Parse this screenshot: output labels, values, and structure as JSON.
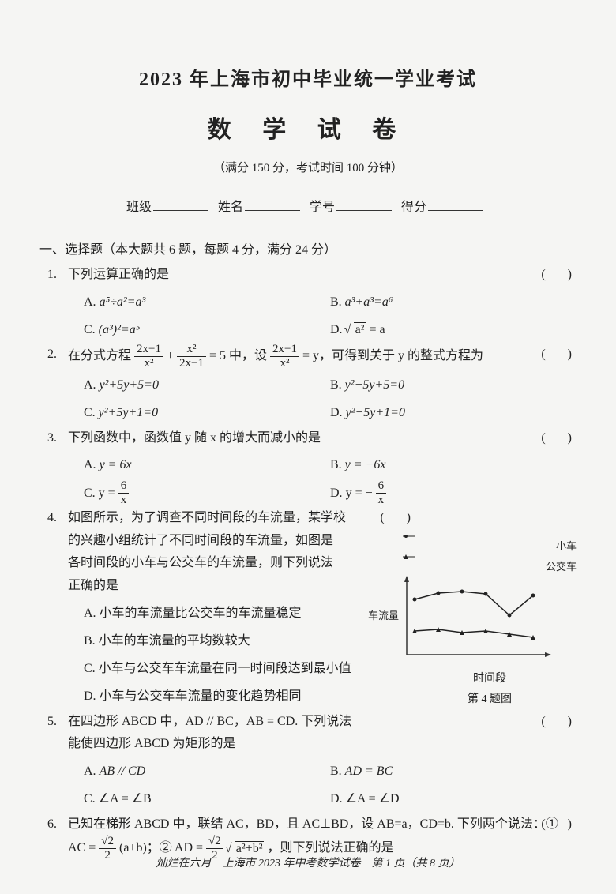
{
  "header": {
    "title1": "2023 年上海市初中毕业统一学业考试",
    "title2": "数 学 试 卷",
    "subtitle": "（满分 150 分，考试时间 100 分钟）",
    "info_labels": {
      "class": "班级",
      "name": "姓名",
      "id": "学号",
      "score": "得分"
    }
  },
  "section1": {
    "heading": "一、选择题（本大题共 6 题，每题 4 分，满分 24 分）",
    "q1": {
      "num": "1.",
      "text": "下列运算正确的是",
      "A": "a⁵÷a²=a³",
      "B": "a³+a³=a⁶",
      "C": "(a³)²=a⁵",
      "D_prefix": "",
      "D_rad": "a²",
      "D_suffix": " = a"
    },
    "q2": {
      "num": "2.",
      "pre": "在分式方程 ",
      "mid1": " + ",
      "mid2": " = 5 中，设 ",
      "mid3": " = y，可得到关于 y 的整式方程为",
      "A": "y²+5y+5=0",
      "B": "y²−5y+5=0",
      "C": "y²+5y+1=0",
      "D": "y²−5y+1=0",
      "frac1": {
        "num": "2x−1",
        "den": "x²"
      },
      "frac2": {
        "num": "x²",
        "den": "2x−1"
      },
      "frac3": {
        "num": "2x−1",
        "den": "x²"
      }
    },
    "q3": {
      "num": "3.",
      "text": "下列函数中，函数值 y 随 x 的增大而减小的是",
      "A": "y = 6x",
      "B": "y = −6x",
      "C_pre": "y = ",
      "C_frac": {
        "num": "6",
        "den": "x"
      },
      "D_pre": "y = − ",
      "D_frac": {
        "num": "6",
        "den": "x"
      }
    },
    "q4": {
      "num": "4.",
      "l1": "如图所示，为了调查不同时间段的车流量，某学校",
      "l2": "的兴趣小组统计了不同时间段的车流量，如图是",
      "l3": "各时间段的小车与公交车的车流量，则下列说法",
      "l4": "正确的是",
      "A": "A. 小车的车流量比公交车的车流量稳定",
      "B": "B. 小车的车流量的平均数较大",
      "C": "C. 小车与公交车车流量在同一时间段达到最小值",
      "D": "D. 小车与公交车车流量的变化趋势相同",
      "chart": {
        "type": "line",
        "background_color": "#f5f5f3",
        "axis_color": "#333333",
        "ylabel": "车流量",
        "xlabel": "时间段",
        "legend": {
          "car": "小车",
          "bus": "公交车"
        },
        "figure_label": "第 4 题图",
        "series": {
          "car": {
            "marker": "dot",
            "color": "#222222",
            "points": [
              [
                10,
                30
              ],
              [
                40,
                22
              ],
              [
                70,
                20
              ],
              [
                100,
                23
              ],
              [
                130,
                50
              ],
              [
                160,
                25
              ]
            ]
          },
          "bus": {
            "marker": "triangle",
            "color": "#222222",
            "points": [
              [
                10,
                70
              ],
              [
                40,
                68
              ],
              [
                70,
                72
              ],
              [
                100,
                70
              ],
              [
                130,
                74
              ],
              [
                160,
                78
              ]
            ]
          }
        },
        "width": 190,
        "height": 115
      }
    },
    "q5": {
      "num": "5.",
      "l1": "在四边形 ABCD 中，AD // BC，AB = CD. 下列说法",
      "l2": "能使四边形 ABCD 为矩形的是",
      "A": "AB // CD",
      "B": "AD = BC",
      "C": "∠A = ∠B",
      "D": "∠A = ∠D"
    },
    "q6": {
      "num": "6.",
      "l1": "已知在梯形 ABCD 中，联结 AC，BD，且 AC⊥BD，设 AB=a，CD=b. 下列两个说法：①",
      "l2_pre": "AC = ",
      "frac1": {
        "num": "√2",
        "den": "2"
      },
      "l2_mid1": "(a+b)；② AD = ",
      "frac2": {
        "num": "√2",
        "den": "2"
      },
      "rad": "a²+b²",
      "l2_tail": "，则下列说法正确的是"
    }
  },
  "footer": "灿烂在六月　上海市 2023 年中考数学试卷　第 1 页（共 8 页）",
  "paren": "(　)"
}
